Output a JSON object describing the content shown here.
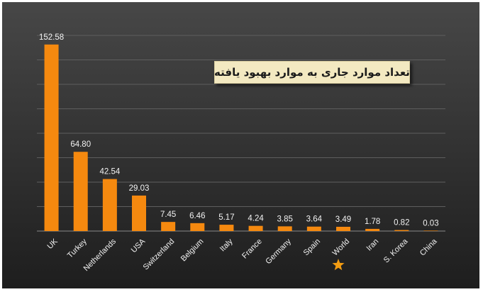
{
  "chart_data": {
    "type": "bar",
    "title": "تعداد موارد جاری به موارد بهبود یافته",
    "categories": [
      "UK",
      "Turkey",
      "Netherlands",
      "USA",
      "Switzerland",
      "Belgium",
      "Italy",
      "France",
      "Germany",
      "Spain",
      "World",
      "Iran",
      "S. Korea",
      "China"
    ],
    "values": [
      152.58,
      64.8,
      42.54,
      29.03,
      7.45,
      6.46,
      5.17,
      4.24,
      3.85,
      3.64,
      3.49,
      1.78,
      0.82,
      0.03
    ],
    "value_labels": [
      "152.58",
      "64.80",
      "42.54",
      "29.03",
      "7.45",
      "6.46",
      "5.17",
      "4.24",
      "3.85",
      "3.64",
      "3.49",
      "1.78",
      "0.82",
      "0.03"
    ],
    "ylim": [
      0,
      160
    ],
    "grid": true,
    "highlight": {
      "category": "World",
      "marker": "star",
      "color": "#f39c12"
    },
    "colors": {
      "bar": "#f5890f",
      "background_top": "#444444",
      "background_bottom": "#1f1f1f",
      "grid": "#5e5e5e",
      "text": "#f2f2f2"
    }
  }
}
